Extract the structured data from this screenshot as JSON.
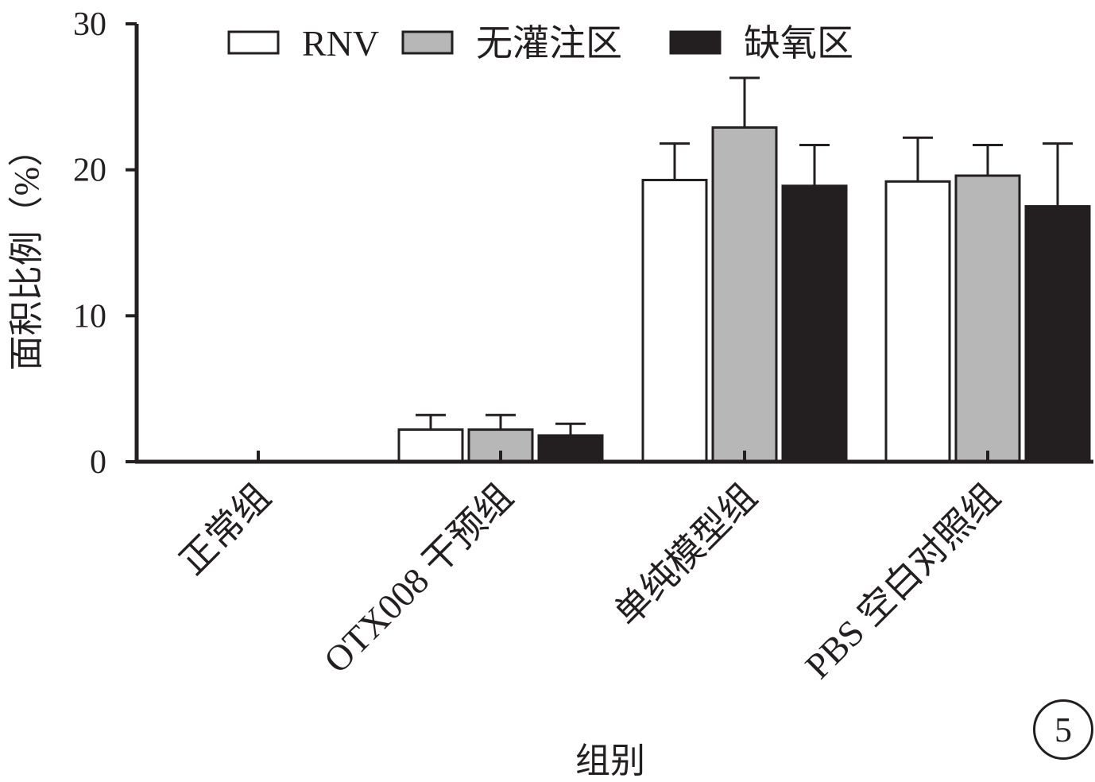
{
  "chart_data": {
    "type": "bar",
    "xlabel": "组别",
    "ylabel": "面积比例（%）",
    "ylim": [
      0,
      30
    ],
    "yticks": [
      0,
      10,
      20,
      30
    ],
    "categories": [
      "正常组",
      "OTX008 干预组",
      "单纯模型组",
      "PBS 空白对照组"
    ],
    "series": [
      {
        "name": "RNV",
        "color": "#ffffff",
        "values": [
          0,
          2.2,
          19.3,
          19.2
        ],
        "errors": [
          0,
          1.0,
          2.5,
          3.0
        ]
      },
      {
        "name": "无灌注区",
        "color": "#b7b7b7",
        "values": [
          0,
          2.2,
          22.9,
          19.6
        ],
        "errors": [
          0,
          1.0,
          3.4,
          2.1
        ]
      },
      {
        "name": "缺氧区",
        "color": "#231f20",
        "values": [
          0,
          1.8,
          18.9,
          17.5
        ],
        "errors": [
          0,
          0.8,
          2.8,
          4.3
        ]
      }
    ],
    "legend_position": "top",
    "grid": false
  },
  "panel_label": "5"
}
